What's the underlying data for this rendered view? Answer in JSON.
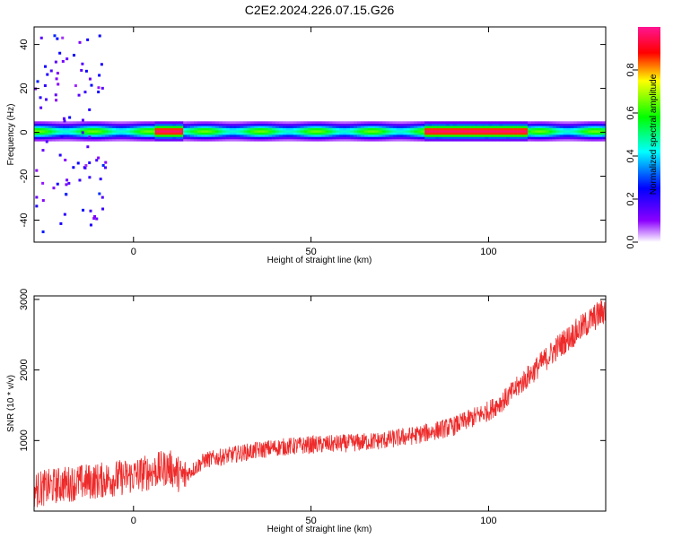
{
  "title": "C2E2.2024.226.07.15.G26",
  "colors": {
    "snr_line": "#ee2a2a",
    "background": "#ffffff",
    "axis": "#000000"
  },
  "chart_data": [
    {
      "type": "heatmap",
      "xlabel": "Height of straight line (km)",
      "ylabel": "Frequency (Hz)",
      "xlim": [
        -28,
        133
      ],
      "ylim": [
        -50,
        48
      ],
      "x_ticks": [
        0,
        50,
        100
      ],
      "y_ticks": [
        40,
        20,
        0,
        -20,
        -40
      ],
      "y_tick_labels": [
        "40",
        "20",
        "0",
        "-20",
        "-40"
      ],
      "grid": false,
      "colorbar": {
        "label": "Normalized spectral amplitude",
        "range": [
          0,
          1
        ],
        "ticks": [
          0.0,
          0.2,
          0.4,
          0.6,
          0.8
        ],
        "tick_labels": [
          "0.0",
          "0.2",
          "0.4",
          "0.6",
          "0.8"
        ],
        "colormap": "rainbow (white-violet-blue-cyan-green-yellow-red)"
      },
      "ridge_description": "signal concentrated near 0 Hz along the full height range; strongest (0.9-1.0) near 6-13 km and 82-110 km; scattered noise at heights below -10 km",
      "strong_segments_km": [
        [
          6,
          13
        ],
        [
          82,
          100
        ],
        [
          101,
          110
        ]
      ]
    },
    {
      "type": "line",
      "xlabel": "Height of straight line (km)",
      "ylabel": "SNR (10 * v/v)",
      "xlim": [
        -28,
        133
      ],
      "ylim": [
        0,
        3050
      ],
      "x_ticks": [
        0,
        50,
        100
      ],
      "y_ticks": [
        1000,
        2000,
        3000
      ],
      "y_tick_labels": [
        "1000",
        "2000",
        "3000"
      ],
      "grid": false,
      "series": [
        {
          "x": [
            -28,
            -20,
            -10,
            0,
            5,
            10,
            14,
            20,
            30,
            40,
            50,
            60,
            70,
            80,
            90,
            100,
            105,
            110,
            115,
            120,
            125,
            130,
            133
          ],
          "values": [
            300,
            380,
            430,
            500,
            560,
            620,
            480,
            720,
            820,
            900,
            940,
            960,
            1000,
            1080,
            1200,
            1420,
            1600,
            1850,
            2100,
            2350,
            2550,
            2750,
            2850
          ]
        }
      ]
    }
  ]
}
